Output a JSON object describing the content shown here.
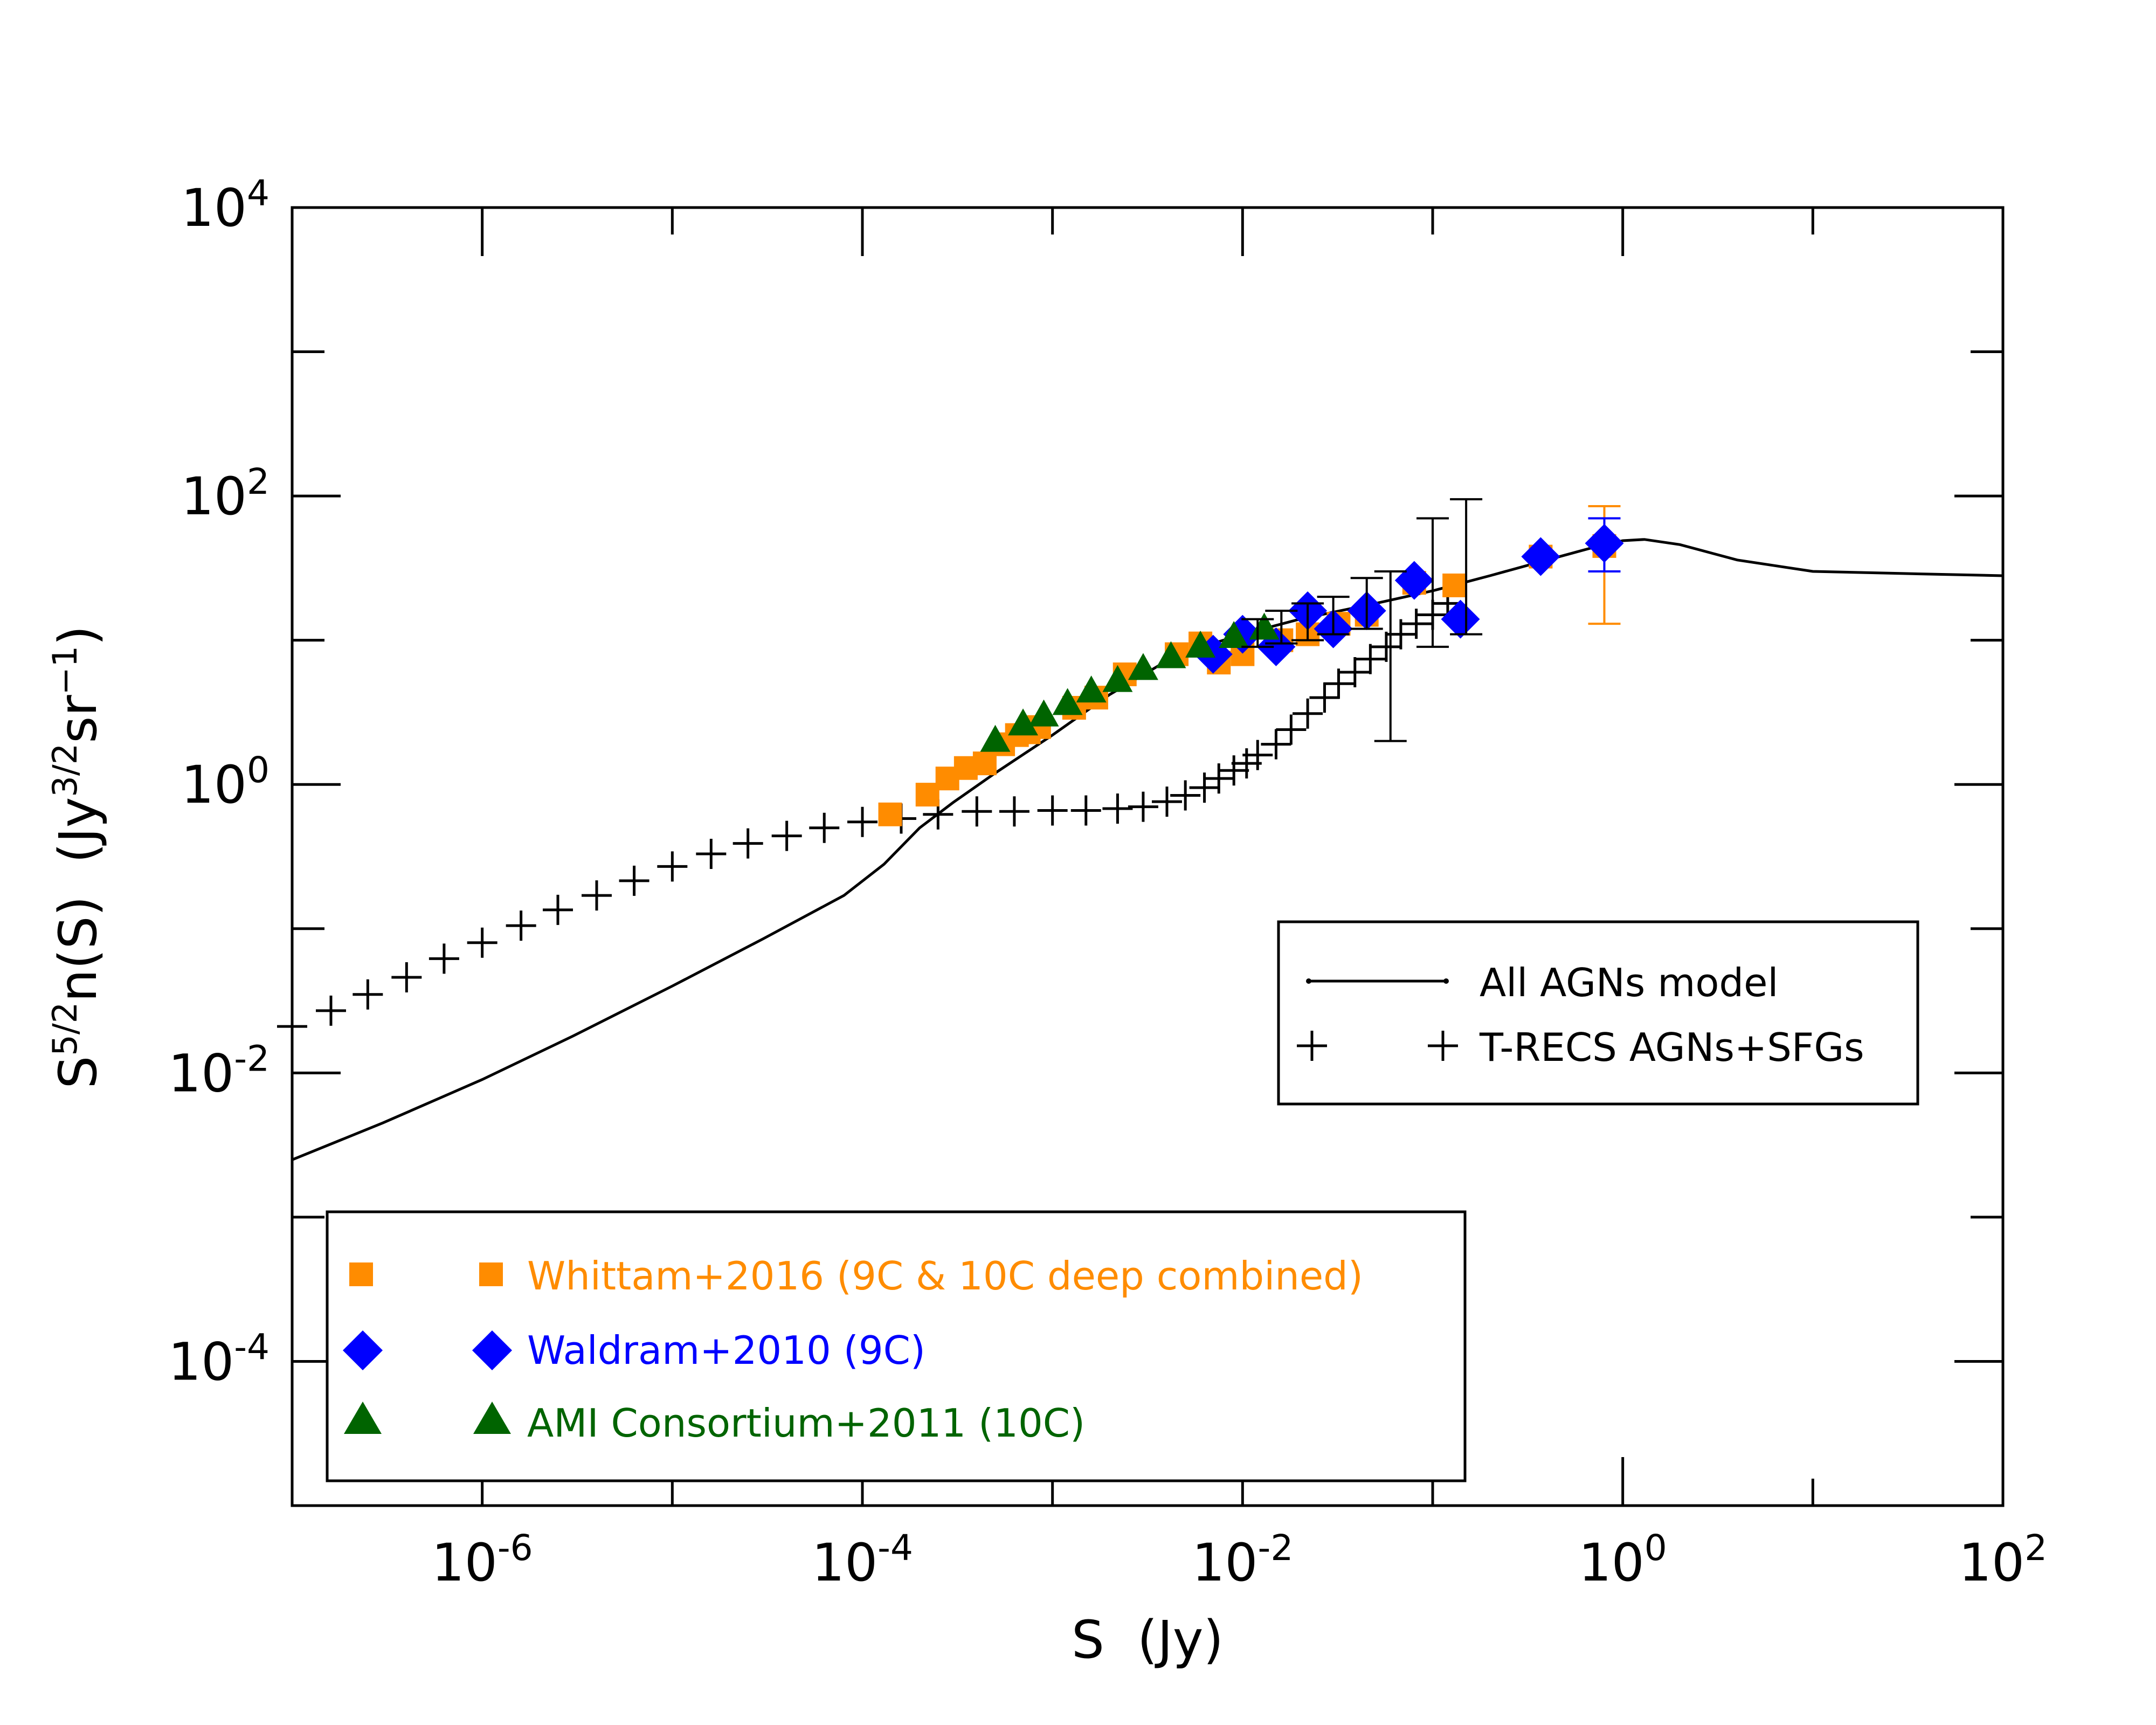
{
  "chart_data": {
    "type": "scatter",
    "title": "",
    "xlabel": "S  (Jy)",
    "ylabel": {
      "base": "S",
      "sup1": "5/2",
      "mid": "n(S)  (Jy",
      "sup2": "3/2",
      "mid2": "sr",
      "sup3": "−1",
      "end": ")"
    },
    "x_scale": "log",
    "y_scale": "log",
    "xlim": [
      1e-07,
      100
    ],
    "ylim": [
      1e-05,
      10000
    ],
    "x_ticks": [
      {
        "value": 1e-06,
        "base": "10",
        "exp": "-6"
      },
      {
        "value": 0.0001,
        "base": "10",
        "exp": "-4"
      },
      {
        "value": 0.01,
        "base": "10",
        "exp": "-2"
      },
      {
        "value": 1,
        "base": "10",
        "exp": "0"
      },
      {
        "value": 100,
        "base": "10",
        "exp": "2"
      }
    ],
    "y_ticks": [
      {
        "value": 0.0001,
        "base": "10",
        "exp": "-4"
      },
      {
        "value": 0.01,
        "base": "10",
        "exp": "-2"
      },
      {
        "value": 1,
        "base": "10",
        "exp": "0"
      },
      {
        "value": 100,
        "base": "10",
        "exp": "2"
      },
      {
        "value": 10000,
        "base": "10",
        "exp": "4"
      }
    ],
    "grid": false,
    "legends": [
      {
        "placement": "middle-right",
        "entries": [
          "All AGNs model",
          "T-RECS AGNs+SFGs"
        ]
      },
      {
        "placement": "bottom-left",
        "entries": [
          "Whittam+2016 (9C & 10C deep combined)",
          "Waldram+2010 (9C)",
          "AMI Consortium+2011  (10C)"
        ]
      }
    ],
    "series": [
      {
        "name": "All AGNs model",
        "style": "line",
        "color": "#000000",
        "x": [
          1e-07,
          3e-07,
          1e-06,
          3e-06,
          1e-05,
          3e-05,
          8e-05,
          0.00013,
          0.0002,
          0.0003,
          0.0005,
          0.001,
          0.002,
          0.004,
          0.007,
          0.01,
          0.02,
          0.05,
          0.1,
          0.2,
          0.4,
          0.7,
          1.0,
          1.3,
          2,
          4,
          10,
          30,
          100
        ],
        "y": [
          0.0025,
          0.0045,
          0.009,
          0.018,
          0.04,
          0.085,
          0.17,
          0.28,
          0.5,
          0.75,
          1.2,
          2.2,
          4.2,
          7.2,
          9.5,
          11,
          14,
          18,
          22,
          28,
          36,
          44,
          49,
          50,
          46,
          36,
          30,
          29,
          28
        ]
      },
      {
        "name": "T-RECS AGNs+SFGs",
        "style": "plus",
        "color": "#000000",
        "points": [
          {
            "x": 1e-07,
            "y": 0.021
          },
          {
            "x": 1.6e-07,
            "y": 0.027
          },
          {
            "x": 2.5e-07,
            "y": 0.035
          },
          {
            "x": 4e-07,
            "y": 0.046
          },
          {
            "x": 6.3e-07,
            "y": 0.062
          },
          {
            "x": 1e-06,
            "y": 0.08
          },
          {
            "x": 1.6e-06,
            "y": 0.105
          },
          {
            "x": 2.5e-06,
            "y": 0.135
          },
          {
            "x": 4e-06,
            "y": 0.17
          },
          {
            "x": 6.3e-06,
            "y": 0.215
          },
          {
            "x": 1e-05,
            "y": 0.27
          },
          {
            "x": 1.6e-05,
            "y": 0.33
          },
          {
            "x": 2.5e-05,
            "y": 0.39
          },
          {
            "x": 4e-05,
            "y": 0.44
          },
          {
            "x": 6.3e-05,
            "y": 0.5
          },
          {
            "x": 0.0001,
            "y": 0.55
          },
          {
            "x": 0.00016,
            "y": 0.58
          },
          {
            "x": 0.00025,
            "y": 0.62
          },
          {
            "x": 0.0004,
            "y": 0.65
          },
          {
            "x": 0.00063,
            "y": 0.65
          },
          {
            "x": 0.001,
            "y": 0.66
          },
          {
            "x": 0.0015,
            "y": 0.66
          },
          {
            "x": 0.0022,
            "y": 0.68
          },
          {
            "x": 0.003,
            "y": 0.7
          },
          {
            "x": 0.004,
            "y": 0.76
          },
          {
            "x": 0.005,
            "y": 0.84
          },
          {
            "x": 0.0063,
            "y": 0.95
          },
          {
            "x": 0.0075,
            "y": 1.1
          },
          {
            "x": 0.009,
            "y": 1.25
          },
          {
            "x": 0.0105,
            "y": 1.4
          },
          {
            "x": 0.012,
            "y": 1.6
          },
          {
            "x": 0.015,
            "y": 1.9
          },
          {
            "x": 0.018,
            "y": 2.4
          },
          {
            "x": 0.022,
            "y": 3.1
          },
          {
            "x": 0.027,
            "y": 4.0
          },
          {
            "x": 0.032,
            "y": 5.0
          },
          {
            "x": 0.039,
            "y": 6.0
          },
          {
            "x": 0.047,
            "y": 7.4
          },
          {
            "x": 0.057,
            "y": 9.0
          },
          {
            "x": 0.068,
            "y": 11
          },
          {
            "x": 0.082,
            "y": 13
          },
          {
            "x": 0.1,
            "y": 15
          },
          {
            "x": 0.12,
            "y": 18
          }
        ]
      },
      {
        "name": "Whittam+2016 (9C & 10C deep combined)",
        "style": "square",
        "color": "#ff8c00",
        "points": [
          {
            "x": 0.00014,
            "y": 0.62
          },
          {
            "x": 0.00022,
            "y": 0.85
          },
          {
            "x": 0.00028,
            "y": 1.1
          },
          {
            "x": 0.00035,
            "y": 1.3
          },
          {
            "x": 0.00044,
            "y": 1.4
          },
          {
            "x": 0.00055,
            "y": 1.9
          },
          {
            "x": 0.00065,
            "y": 2.2
          },
          {
            "x": 0.00075,
            "y": 2.3
          },
          {
            "x": 0.00085,
            "y": 2.5
          },
          {
            "x": 0.0013,
            "y": 3.4
          },
          {
            "x": 0.0017,
            "y": 4.0
          },
          {
            "x": 0.0024,
            "y": 5.8
          },
          {
            "x": 0.0045,
            "y": 8.0
          },
          {
            "x": 0.006,
            "y": 9.5
          },
          {
            "x": 0.0075,
            "y": 7.0
          },
          {
            "x": 0.01,
            "y": 8.0
          },
          {
            "x": 0.016,
            "y": 10
          },
          {
            "x": 0.022,
            "y": 11
          },
          {
            "x": 0.032,
            "y": 13
          },
          {
            "x": 0.045,
            "y": 15
          },
          {
            "x": 0.08,
            "y": 25
          },
          {
            "x": 0.13,
            "y": 24
          },
          {
            "x": 0.37,
            "y": 38
          },
          {
            "x": 0.8,
            "y": 45,
            "err": [
              13,
              85
            ]
          }
        ]
      },
      {
        "name": "Waldram+2010 (9C)",
        "style": "diamond",
        "color": "#0000ff",
        "points": [
          {
            "x": 0.007,
            "y": 8.0
          },
          {
            "x": 0.01,
            "y": 11
          },
          {
            "x": 0.015,
            "y": 9.0
          },
          {
            "x": 0.022,
            "y": 16
          },
          {
            "x": 0.03,
            "y": 12
          },
          {
            "x": 0.045,
            "y": 16
          },
          {
            "x": 0.08,
            "y": 26
          },
          {
            "x": 0.14,
            "y": 14
          },
          {
            "x": 0.37,
            "y": 38
          },
          {
            "x": 0.8,
            "y": 47,
            "err": [
              30,
              70
            ]
          }
        ]
      },
      {
        "name": "AMI Consortium+2011  (10C)",
        "style": "triangle",
        "color": "#006400",
        "points": [
          {
            "x": 0.0005,
            "y": 2.0
          },
          {
            "x": 0.0007,
            "y": 2.6
          },
          {
            "x": 0.0009,
            "y": 3.0
          },
          {
            "x": 0.0012,
            "y": 3.6
          },
          {
            "x": 0.0016,
            "y": 4.4
          },
          {
            "x": 0.0022,
            "y": 5.2
          },
          {
            "x": 0.003,
            "y": 6.3
          },
          {
            "x": 0.0042,
            "y": 7.6
          },
          {
            "x": 0.006,
            "y": 9.0
          },
          {
            "x": 0.009,
            "y": 10.5
          },
          {
            "x": 0.013,
            "y": 12
          }
        ]
      },
      {
        "name": "error bars",
        "style": "errorbar",
        "color": "#000000",
        "points": [
          {
            "x": 0.012,
            "y": 11,
            "err": [
              9,
              14
            ]
          },
          {
            "x": 0.016,
            "y": 12,
            "err": [
              9.5,
              16
            ]
          },
          {
            "x": 0.022,
            "y": 13,
            "err": [
              10,
              18
            ]
          },
          {
            "x": 0.03,
            "y": 15,
            "err": [
              11,
              20
            ]
          },
          {
            "x": 0.045,
            "y": 18,
            "err": [
              12,
              27
            ]
          },
          {
            "x": 0.06,
            "y": 20,
            "err": [
              2,
              30
            ]
          },
          {
            "x": 0.1,
            "y": 22,
            "err": [
              9,
              70
            ]
          },
          {
            "x": 0.15,
            "y": 25,
            "err": [
              11,
              95
            ]
          }
        ]
      }
    ]
  }
}
